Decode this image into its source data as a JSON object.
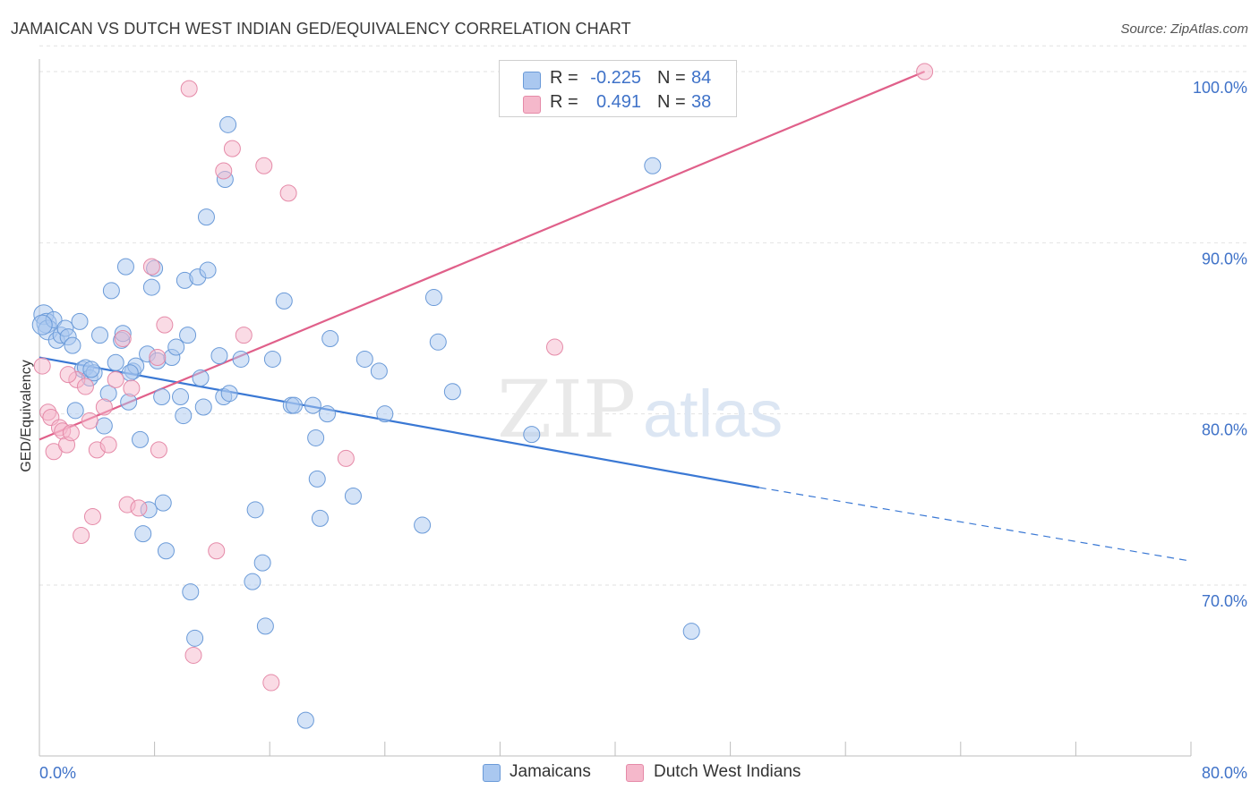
{
  "title": "JAMAICAN VS DUTCH WEST INDIAN GED/EQUIVALENCY CORRELATION CHART",
  "source": "Source: ZipAtlas.com",
  "watermark": "ZIPatlas",
  "colors": {
    "blue": "#3a78d4",
    "blue_fill": "#aac8f0",
    "pink": "#e0608a",
    "pink_fill": "#f5b8cb",
    "tick_text": "#3f72c8",
    "grid": "#e2e2e2"
  },
  "legend": {
    "rows": [
      {
        "r_label": "R =",
        "r_value": "-0.225",
        "n_label": "N =",
        "n_value": "84",
        "color": "#aac8f0",
        "border": "#6a9ad8"
      },
      {
        "r_label": "R =",
        "r_value": "0.491",
        "n_label": "N =",
        "n_value": "38",
        "color": "#f5b8cb",
        "border": "#e58aa8"
      }
    ]
  },
  "bottom_legend": [
    {
      "label": "Jamaicans",
      "color": "#aac8f0",
      "border": "#6a9ad8"
    },
    {
      "label": "Dutch West Indians",
      "color": "#f5b8cb",
      "border": "#e58aa8"
    }
  ],
  "chart_data": {
    "type": "scatter",
    "title": "JAMAICAN VS DUTCH WEST INDIAN GED/EQUIVALENCY CORRELATION CHART",
    "xlabel": "",
    "ylabel": "GED/Equivalency",
    "xlim": [
      0,
      80
    ],
    "ylim": [
      60,
      101.5
    ],
    "x_ticks": [
      0,
      80
    ],
    "x_tick_labels": [
      "0.0%",
      "80.0%"
    ],
    "y_ticks": [
      70,
      80,
      90,
      100
    ],
    "y_tick_labels": [
      "70.0%",
      "80.0%",
      "90.0%",
      "100.0%"
    ],
    "grid": true,
    "legend_position": "top-center",
    "series": [
      {
        "name": "Jamaicans",
        "color": "#3a78d4",
        "trend": {
          "x0": 0,
          "y0": 83.3,
          "x1": 50,
          "y1": 75.7,
          "dashed_to_x": 80,
          "dashed_to_y": 71.4
        },
        "points": [
          [
            0.3,
            85.8
          ],
          [
            0.5,
            85.3
          ],
          [
            0.6,
            84.9
          ],
          [
            1.0,
            85.5
          ],
          [
            1.2,
            84.3
          ],
          [
            1.5,
            84.6
          ],
          [
            1.8,
            85.0
          ],
          [
            2.0,
            84.5
          ],
          [
            2.3,
            84.0
          ],
          [
            2.5,
            80.2
          ],
          [
            2.8,
            85.4
          ],
          [
            3.0,
            82.6
          ],
          [
            3.2,
            82.7
          ],
          [
            3.5,
            82.1
          ],
          [
            3.8,
            82.4
          ],
          [
            4.2,
            84.6
          ],
          [
            4.5,
            79.3
          ],
          [
            4.8,
            81.2
          ],
          [
            5.0,
            87.2
          ],
          [
            5.3,
            83.0
          ],
          [
            5.7,
            84.3
          ],
          [
            5.8,
            84.7
          ],
          [
            6.0,
            88.6
          ],
          [
            6.2,
            80.7
          ],
          [
            6.5,
            82.5
          ],
          [
            6.7,
            82.8
          ],
          [
            7.0,
            78.5
          ],
          [
            7.2,
            73.0
          ],
          [
            7.5,
            83.5
          ],
          [
            7.6,
            74.4
          ],
          [
            7.8,
            87.4
          ],
          [
            8.0,
            88.5
          ],
          [
            8.2,
            83.1
          ],
          [
            8.5,
            81.0
          ],
          [
            8.6,
            74.8
          ],
          [
            8.8,
            72.0
          ],
          [
            9.2,
            83.3
          ],
          [
            9.5,
            83.9
          ],
          [
            9.8,
            81.0
          ],
          [
            10.0,
            79.9
          ],
          [
            10.1,
            87.8
          ],
          [
            10.3,
            84.6
          ],
          [
            10.5,
            69.6
          ],
          [
            10.8,
            66.9
          ],
          [
            11.0,
            88.0
          ],
          [
            11.2,
            82.1
          ],
          [
            11.4,
            80.4
          ],
          [
            11.7,
            88.4
          ],
          [
            11.6,
            91.5
          ],
          [
            12.5,
            83.4
          ],
          [
            12.8,
            81.0
          ],
          [
            12.9,
            93.7
          ],
          [
            13.1,
            96.9
          ],
          [
            13.2,
            81.2
          ],
          [
            14.0,
            83.2
          ],
          [
            14.8,
            70.2
          ],
          [
            15.0,
            74.4
          ],
          [
            15.5,
            71.3
          ],
          [
            15.7,
            67.6
          ],
          [
            16.2,
            83.2
          ],
          [
            17.0,
            86.6
          ],
          [
            17.5,
            80.5
          ],
          [
            17.7,
            80.5
          ],
          [
            18.5,
            62.1
          ],
          [
            19.0,
            80.5
          ],
          [
            19.2,
            78.6
          ],
          [
            19.3,
            76.2
          ],
          [
            19.5,
            73.9
          ],
          [
            20.0,
            80.0
          ],
          [
            20.2,
            84.4
          ],
          [
            21.8,
            75.2
          ],
          [
            22.6,
            83.2
          ],
          [
            23.6,
            82.5
          ],
          [
            24.0,
            80.0
          ],
          [
            26.6,
            73.5
          ],
          [
            27.4,
            86.8
          ],
          [
            27.7,
            84.2
          ],
          [
            28.7,
            81.3
          ],
          [
            34.2,
            78.8
          ],
          [
            42.6,
            94.5
          ],
          [
            45.3,
            67.3
          ],
          [
            0.2,
            85.2
          ],
          [
            3.6,
            82.6
          ],
          [
            6.3,
            82.4
          ]
        ]
      },
      {
        "name": "Dutch West Indians",
        "color": "#e0608a",
        "trend": {
          "x0": 0,
          "y0": 78.5,
          "x1": 61.5,
          "y1": 100.0
        },
        "points": [
          [
            0.2,
            82.8
          ],
          [
            0.6,
            80.1
          ],
          [
            0.8,
            79.8
          ],
          [
            1.0,
            77.8
          ],
          [
            1.4,
            79.2
          ],
          [
            1.6,
            79.0
          ],
          [
            1.9,
            78.2
          ],
          [
            2.2,
            78.9
          ],
          [
            2.6,
            82.0
          ],
          [
            2.9,
            72.9
          ],
          [
            3.2,
            81.6
          ],
          [
            3.5,
            79.6
          ],
          [
            3.7,
            74.0
          ],
          [
            4.0,
            77.9
          ],
          [
            4.5,
            80.4
          ],
          [
            4.8,
            78.2
          ],
          [
            5.3,
            82.0
          ],
          [
            5.8,
            84.4
          ],
          [
            6.1,
            74.7
          ],
          [
            6.4,
            81.5
          ],
          [
            6.9,
            74.5
          ],
          [
            7.8,
            88.6
          ],
          [
            8.2,
            83.3
          ],
          [
            8.3,
            77.9
          ],
          [
            8.7,
            85.2
          ],
          [
            10.4,
            99.0
          ],
          [
            10.7,
            65.9
          ],
          [
            12.3,
            72.0
          ],
          [
            12.8,
            94.2
          ],
          [
            13.4,
            95.5
          ],
          [
            14.2,
            84.6
          ],
          [
            15.6,
            94.5
          ],
          [
            16.1,
            64.3
          ],
          [
            17.3,
            92.9
          ],
          [
            21.3,
            77.4
          ],
          [
            35.8,
            83.9
          ],
          [
            61.5,
            100.0
          ],
          [
            2.0,
            82.3
          ]
        ]
      }
    ]
  }
}
